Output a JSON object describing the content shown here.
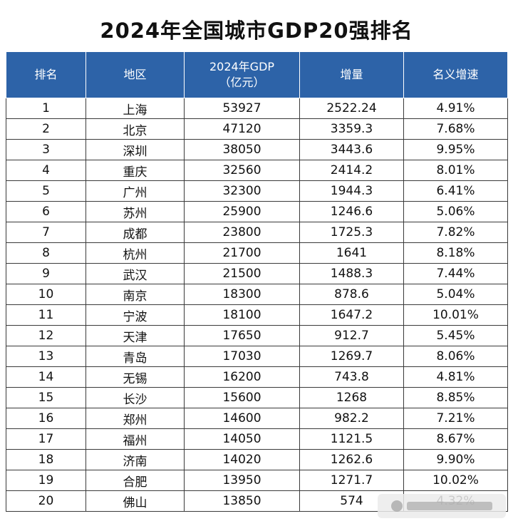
{
  "title": "2024年全国城市GDP20强排名",
  "table": {
    "headers": {
      "rank": "排名",
      "region": "地区",
      "gdp_line1": "2024年GDP",
      "gdp_line2": "（亿元）",
      "increase": "增量",
      "growth": "名义增速"
    },
    "rows": [
      {
        "rank": "1",
        "city": "上海",
        "gdp": "53927",
        "increase": "2522.24",
        "growth": "4.91%"
      },
      {
        "rank": "2",
        "city": "北京",
        "gdp": "47120",
        "increase": "3359.3",
        "growth": "7.68%"
      },
      {
        "rank": "3",
        "city": "深圳",
        "gdp": "38050",
        "increase": "3443.6",
        "growth": "9.95%"
      },
      {
        "rank": "4",
        "city": "重庆",
        "gdp": "32560",
        "increase": "2414.2",
        "growth": "8.01%"
      },
      {
        "rank": "5",
        "city": "广州",
        "gdp": "32300",
        "increase": "1944.3",
        "growth": "6.41%"
      },
      {
        "rank": "6",
        "city": "苏州",
        "gdp": "25900",
        "increase": "1246.6",
        "growth": "5.06%"
      },
      {
        "rank": "7",
        "city": "成都",
        "gdp": "23800",
        "increase": "1725.3",
        "growth": "7.82%"
      },
      {
        "rank": "8",
        "city": "杭州",
        "gdp": "21700",
        "increase": "1641",
        "growth": "8.18%"
      },
      {
        "rank": "9",
        "city": "武汉",
        "gdp": "21500",
        "increase": "1488.3",
        "growth": "7.44%"
      },
      {
        "rank": "10",
        "city": "南京",
        "gdp": "18300",
        "increase": "878.6",
        "growth": "5.04%"
      },
      {
        "rank": "11",
        "city": "宁波",
        "gdp": "18100",
        "increase": "1647.2",
        "growth": "10.01%"
      },
      {
        "rank": "12",
        "city": "天津",
        "gdp": "17650",
        "increase": "912.7",
        "growth": "5.45%"
      },
      {
        "rank": "13",
        "city": "青岛",
        "gdp": "17030",
        "increase": "1269.7",
        "growth": "8.06%"
      },
      {
        "rank": "14",
        "city": "无锡",
        "gdp": "16200",
        "increase": "743.8",
        "growth": "4.81%"
      },
      {
        "rank": "15",
        "city": "长沙",
        "gdp": "15600",
        "increase": "1268",
        "growth": "8.85%"
      },
      {
        "rank": "16",
        "city": "郑州",
        "gdp": "14600",
        "increase": "982.2",
        "growth": "7.21%"
      },
      {
        "rank": "17",
        "city": "福州",
        "gdp": "14050",
        "increase": "1121.5",
        "growth": "8.67%"
      },
      {
        "rank": "18",
        "city": "济南",
        "gdp": "14020",
        "increase": "1262.6",
        "growth": "9.90%"
      },
      {
        "rank": "19",
        "city": "合肥",
        "gdp": "13950",
        "increase": "1271.7",
        "growth": "10.02%"
      },
      {
        "rank": "20",
        "city": "佛山",
        "gdp": "13850",
        "increase": "574",
        "growth": "4.32%"
      }
    ]
  },
  "colors": {
    "header_bg": "#2d63a8",
    "header_text": "#ffffff"
  }
}
